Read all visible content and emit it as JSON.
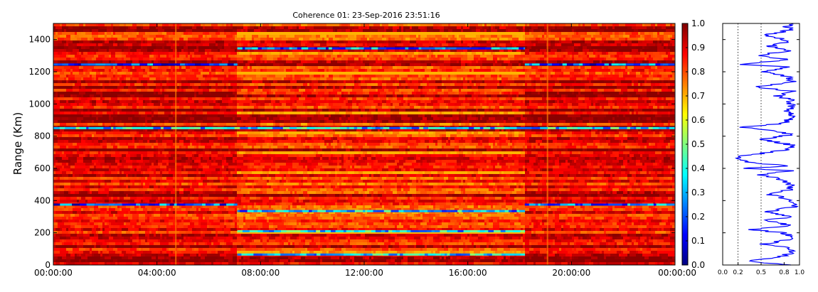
{
  "title": "Coherence 01: 23-Sep-2016 23:51:16",
  "chart_data": [
    {
      "type": "heatmap",
      "title": "Coherence 01: 23-Sep-2016 23:51:16",
      "ylabel": "Range (Km)",
      "xlabel": "",
      "x_tick_labels": [
        "00:00:00",
        "04:00:00",
        "08:00:00",
        "12:00:00",
        "16:00:00",
        "20:00:00",
        "00:00:00"
      ],
      "xlim_hours": [
        0,
        24
      ],
      "y_ticks": [
        0,
        200,
        400,
        600,
        800,
        1000,
        1200,
        1400
      ],
      "ylim": [
        0,
        1500
      ],
      "colormap": "jet",
      "colorbar": {
        "vmin": 0.0,
        "vmax": 1.0,
        "ticks": [
          "0.0",
          "0.1",
          "0.2",
          "0.3",
          "0.4",
          "0.5",
          "0.6",
          "0.7",
          "0.8",
          "0.9",
          "1.0"
        ]
      },
      "segments_hours": [
        {
          "start": 0.0,
          "end": 7.1,
          "base": 0.9
        },
        {
          "start": 7.1,
          "end": 18.2,
          "base": 0.86
        },
        {
          "start": 18.2,
          "end": 24.0,
          "base": 0.9
        }
      ],
      "low_coherence_bands": [
        {
          "range_km": 1245,
          "hours": [
            0.0,
            7.1
          ],
          "value": 0.2
        },
        {
          "range_km": 1245,
          "hours": [
            18.2,
            24.0
          ],
          "value": 0.2
        },
        {
          "range_km": 1345,
          "hours": [
            7.1,
            18.2
          ],
          "value": 0.25
        },
        {
          "range_km": 850,
          "hours": [
            0.0,
            24.0
          ],
          "value": 0.35
        },
        {
          "range_km": 375,
          "hours": [
            0.0,
            7.1
          ],
          "value": 0.2
        },
        {
          "range_km": 375,
          "hours": [
            18.2,
            24.0
          ],
          "value": 0.25
        },
        {
          "range_km": 335,
          "hours": [
            7.1,
            18.2
          ],
          "value": 0.3
        },
        {
          "range_km": 210,
          "hours": [
            7.1,
            18.2
          ],
          "value": 0.35
        },
        {
          "range_km": 65,
          "hours": [
            7.1,
            18.2
          ],
          "value": 0.35
        }
      ]
    },
    {
      "type": "line",
      "title": "",
      "xlabel": "",
      "ylabel": "",
      "x_tick_labels": [
        "0.0",
        "0.2",
        "0.5",
        "0.8",
        "1.0"
      ],
      "xlim": [
        0,
        1
      ],
      "ylim": [
        0,
        1500
      ],
      "grid_x": [
        0.2,
        0.5
      ],
      "line_color": "#0000ff",
      "profile_x_by_range_km": [
        [
          0,
          0.88
        ],
        [
          25,
          0.3
        ],
        [
          50,
          0.75
        ],
        [
          80,
          0.92
        ],
        [
          110,
          0.85
        ],
        [
          130,
          0.55
        ],
        [
          160,
          0.9
        ],
        [
          200,
          0.8
        ],
        [
          220,
          0.35
        ],
        [
          245,
          0.9
        ],
        [
          275,
          0.55
        ],
        [
          300,
          0.88
        ],
        [
          330,
          0.6
        ],
        [
          360,
          0.9
        ],
        [
          380,
          0.92
        ],
        [
          410,
          0.85
        ],
        [
          440,
          0.6
        ],
        [
          470,
          0.9
        ],
        [
          500,
          0.88
        ],
        [
          540,
          0.7
        ],
        [
          560,
          0.45
        ],
        [
          585,
          0.9
        ],
        [
          600,
          0.25
        ],
        [
          615,
          0.85
        ],
        [
          640,
          0.3
        ],
        [
          660,
          0.15
        ],
        [
          675,
          0.25
        ],
        [
          700,
          0.6
        ],
        [
          720,
          0.85
        ],
        [
          745,
          0.9
        ],
        [
          780,
          0.5
        ],
        [
          810,
          0.88
        ],
        [
          830,
          0.7
        ],
        [
          855,
          0.25
        ],
        [
          880,
          0.8
        ],
        [
          920,
          0.9
        ],
        [
          960,
          0.85
        ],
        [
          990,
          0.9
        ],
        [
          1030,
          0.88
        ],
        [
          1050,
          0.7
        ],
        [
          1080,
          0.9
        ],
        [
          1105,
          0.45
        ],
        [
          1140,
          0.9
        ],
        [
          1170,
          0.85
        ],
        [
          1200,
          0.55
        ],
        [
          1230,
          0.9
        ],
        [
          1245,
          0.2
        ],
        [
          1275,
          0.9
        ],
        [
          1300,
          0.45
        ],
        [
          1330,
          0.85
        ],
        [
          1360,
          0.6
        ],
        [
          1390,
          0.9
        ],
        [
          1430,
          0.55
        ],
        [
          1460,
          0.9
        ],
        [
          1480,
          0.85
        ],
        [
          1500,
          0.9
        ]
      ]
    }
  ]
}
